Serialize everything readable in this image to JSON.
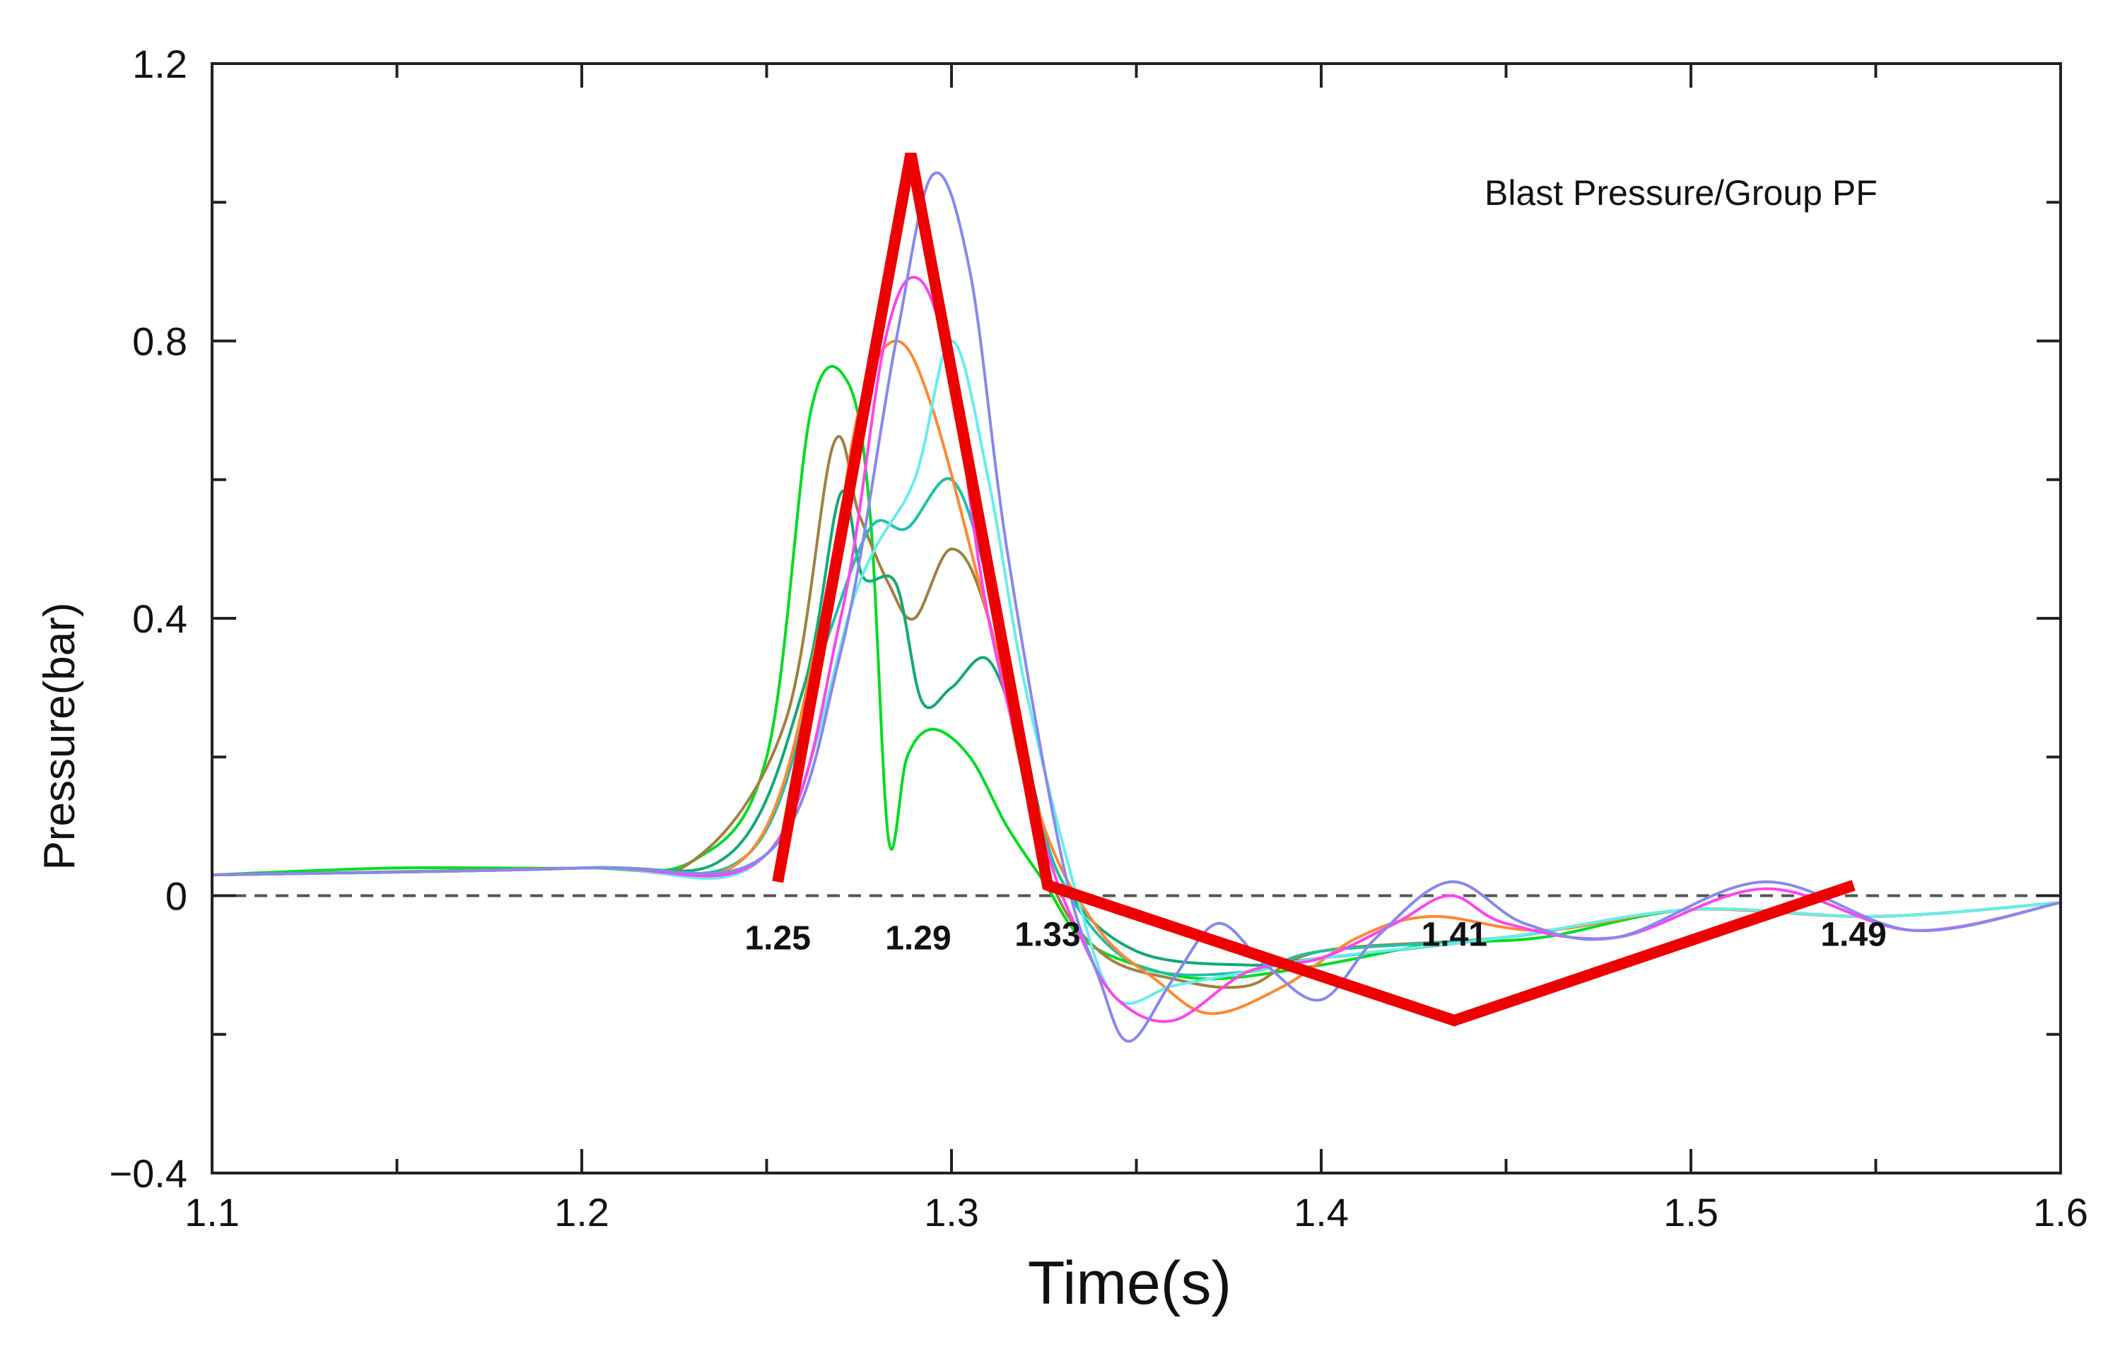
{
  "chart_data": {
    "type": "line",
    "title": "",
    "inset_label": "Blast Pressure/Group PF",
    "xlabel": "Time(s)",
    "ylabel": "Pressure(bar)",
    "xlim": [
      1.1,
      1.6
    ],
    "ylim": [
      -0.4,
      1.2
    ],
    "x_ticks": [
      1.1,
      1.2,
      1.3,
      1.4,
      1.5,
      1.6
    ],
    "x_tick_labels": [
      "1.1",
      "1.2",
      "1.3",
      "1.4",
      "1.5",
      "1.6"
    ],
    "y_ticks": [
      -0.4,
      0,
      0.4,
      0.8,
      1.2
    ],
    "y_tick_labels": [
      "−0.4",
      "0",
      "0.4",
      "0.8",
      "1.2"
    ],
    "grid": false,
    "zero_line": {
      "y": 0,
      "style": "dashed",
      "color": "#555555"
    },
    "annotations": [
      {
        "text": "1.25",
        "x": 1.253,
        "y": -0.06
      },
      {
        "text": "1.29",
        "x": 1.291,
        "y": -0.06
      },
      {
        "text": "1.33",
        "x": 1.326,
        "y": -0.055
      },
      {
        "text": "1.41",
        "x": 1.436,
        "y": -0.055
      },
      {
        "text": "1.49",
        "x": 1.544,
        "y": -0.055
      }
    ],
    "series": [
      {
        "color": "#00dd22",
        "x": [
          1.1,
          1.15,
          1.2,
          1.23,
          1.25,
          1.262,
          1.272,
          1.278,
          1.283,
          1.288,
          1.295,
          1.305,
          1.315,
          1.325,
          1.335,
          1.35,
          1.37,
          1.4,
          1.43,
          1.46,
          1.5,
          1.55,
          1.6
        ],
        "y": [
          0.03,
          0.04,
          0.04,
          0.05,
          0.2,
          0.7,
          0.74,
          0.55,
          0.08,
          0.2,
          0.24,
          0.2,
          0.1,
          0.02,
          -0.06,
          -0.1,
          -0.12,
          -0.1,
          -0.07,
          -0.06,
          -0.02,
          -0.03,
          -0.01
        ]
      },
      {
        "color": "#a08040",
        "x": [
          1.1,
          1.2,
          1.23,
          1.255,
          1.268,
          1.275,
          1.283,
          1.29,
          1.3,
          1.31,
          1.325,
          1.34,
          1.36,
          1.38,
          1.4,
          1.45,
          1.5,
          1.55,
          1.6
        ],
        "y": [
          0.03,
          0.04,
          0.05,
          0.25,
          0.65,
          0.55,
          0.45,
          0.4,
          0.5,
          0.4,
          0.05,
          -0.08,
          -0.12,
          -0.13,
          -0.08,
          -0.06,
          -0.02,
          -0.03,
          -0.01
        ]
      },
      {
        "color": "#11aa77",
        "x": [
          1.1,
          1.2,
          1.24,
          1.26,
          1.27,
          1.276,
          1.285,
          1.292,
          1.3,
          1.31,
          1.32,
          1.33,
          1.35,
          1.38,
          1.4,
          1.45,
          1.5,
          1.55,
          1.6
        ],
        "y": [
          0.03,
          0.04,
          0.06,
          0.3,
          0.58,
          0.46,
          0.45,
          0.28,
          0.3,
          0.34,
          0.2,
          0.02,
          -0.08,
          -0.1,
          -0.09,
          -0.06,
          -0.02,
          -0.03,
          -0.01
        ]
      },
      {
        "color": "#20c0a8",
        "x": [
          1.1,
          1.2,
          1.245,
          1.265,
          1.278,
          1.288,
          1.3,
          1.31,
          1.32,
          1.33,
          1.35,
          1.38,
          1.4,
          1.45,
          1.5,
          1.55,
          1.6
        ],
        "y": [
          0.03,
          0.04,
          0.06,
          0.35,
          0.53,
          0.53,
          0.6,
          0.45,
          0.2,
          0.02,
          -0.1,
          -0.11,
          -0.08,
          -0.06,
          -0.02,
          -0.03,
          -0.01
        ]
      },
      {
        "color": "#ff8833",
        "x": [
          1.1,
          1.2,
          1.245,
          1.265,
          1.275,
          1.285,
          1.295,
          1.31,
          1.325,
          1.34,
          1.355,
          1.37,
          1.39,
          1.41,
          1.43,
          1.46,
          1.5,
          1.55,
          1.6
        ],
        "y": [
          0.03,
          0.04,
          0.06,
          0.4,
          0.7,
          0.8,
          0.7,
          0.4,
          0.1,
          -0.05,
          -0.12,
          -0.17,
          -0.13,
          -0.06,
          -0.03,
          -0.05,
          -0.02,
          -0.03,
          -0.01
        ]
      },
      {
        "color": "#66eeee",
        "x": [
          1.1,
          1.2,
          1.25,
          1.275,
          1.29,
          1.3,
          1.31,
          1.32,
          1.335,
          1.345,
          1.36,
          1.38,
          1.4,
          1.45,
          1.5,
          1.55,
          1.6
        ],
        "y": [
          0.03,
          0.04,
          0.06,
          0.45,
          0.6,
          0.8,
          0.6,
          0.3,
          -0.02,
          -0.15,
          -0.13,
          -0.11,
          -0.09,
          -0.06,
          -0.02,
          -0.03,
          -0.01
        ]
      },
      {
        "color": "#ff44ee",
        "x": [
          1.1,
          1.2,
          1.25,
          1.27,
          1.282,
          1.291,
          1.3,
          1.31,
          1.325,
          1.335,
          1.345,
          1.36,
          1.38,
          1.4,
          1.42,
          1.435,
          1.45,
          1.48,
          1.52,
          1.56,
          1.6
        ],
        "y": [
          0.03,
          0.04,
          0.06,
          0.4,
          0.8,
          0.89,
          0.75,
          0.4,
          0.08,
          -0.06,
          -0.15,
          -0.18,
          -0.11,
          -0.09,
          -0.04,
          0.0,
          -0.04,
          -0.06,
          0.01,
          -0.05,
          -0.01
        ]
      },
      {
        "color": "#8888ee",
        "x": [
          1.1,
          1.2,
          1.25,
          1.27,
          1.285,
          1.295,
          1.305,
          1.315,
          1.33,
          1.34,
          1.348,
          1.36,
          1.372,
          1.385,
          1.4,
          1.415,
          1.435,
          1.455,
          1.48,
          1.52,
          1.56,
          1.6
        ],
        "y": [
          0.03,
          0.04,
          0.06,
          0.35,
          0.8,
          1.04,
          0.9,
          0.5,
          0.05,
          -0.12,
          -0.21,
          -0.12,
          -0.04,
          -0.1,
          -0.15,
          -0.06,
          0.02,
          -0.04,
          -0.06,
          0.02,
          -0.05,
          -0.01
        ]
      },
      {
        "color": "#ee0000",
        "role": "envelope",
        "x": [
          1.253,
          1.289,
          1.326,
          1.436,
          1.544
        ],
        "y": [
          0.02,
          1.07,
          0.015,
          -0.18,
          0.015
        ]
      }
    ]
  }
}
